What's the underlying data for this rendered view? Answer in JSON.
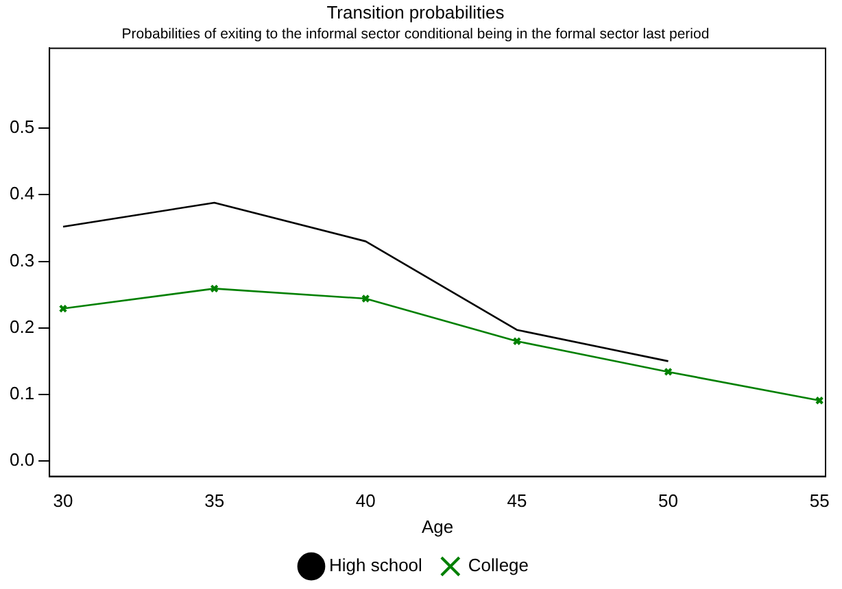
{
  "chart_data": {
    "type": "line",
    "title": "Transition probabilities",
    "subtitle": "Probabilities of exiting to the informal sector conditional being in the formal sector last period",
    "xlabel": "Age",
    "x": [
      30,
      35,
      40,
      45,
      50,
      55
    ],
    "series": [
      {
        "name": "High school",
        "color": "#000000",
        "marker": "none",
        "values": [
          0.352,
          0.388,
          0.33,
          0.197,
          0.15,
          null
        ]
      },
      {
        "name": "College",
        "color": "#008000",
        "marker": "cross",
        "values": [
          0.229,
          0.259,
          0.244,
          0.18,
          0.134,
          0.091
        ]
      }
    ],
    "xlim": [
      29.55,
      55.2
    ],
    "xticks": [
      30,
      35,
      40,
      45,
      50,
      55
    ],
    "ylim": [
      -0.023,
      0.62
    ],
    "yticks": [
      {
        "value": 0,
        "label": "0.0"
      },
      0.1,
      0.2,
      0.3,
      0.4,
      0.5
    ],
    "grid": false,
    "legend": "bottom",
    "line_style": "solid"
  }
}
